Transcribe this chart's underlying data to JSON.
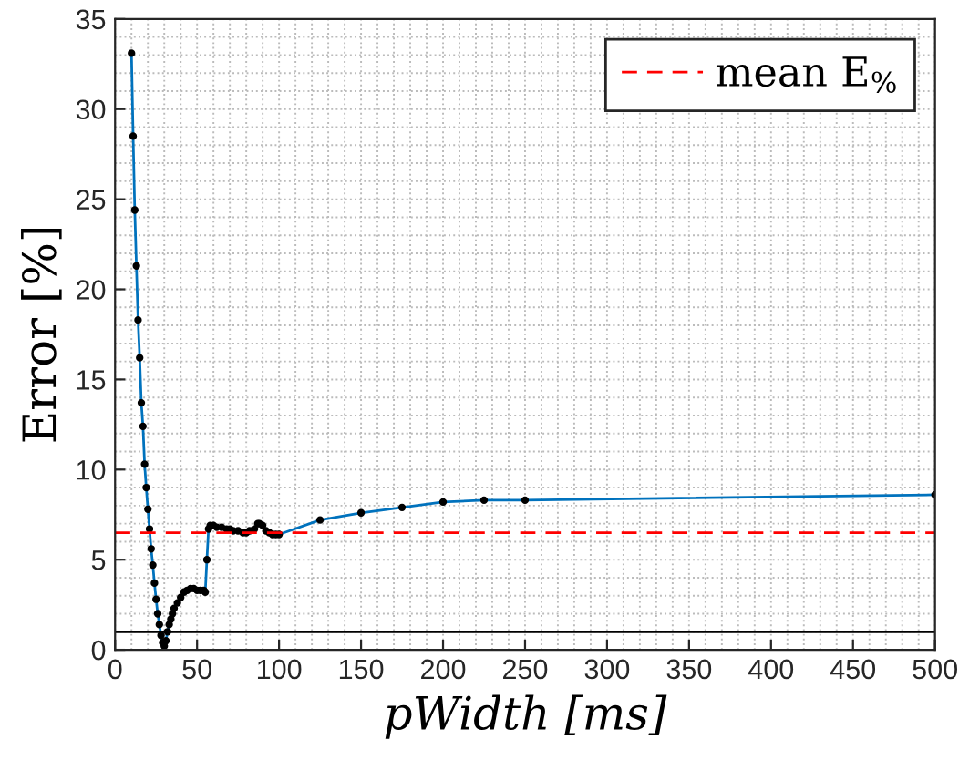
{
  "chart_data": {
    "type": "line",
    "xlabel": "pWidth [ms]",
    "ylabel": "Error [%]",
    "x": [
      10,
      11,
      12,
      13,
      14,
      15,
      16,
      17,
      18,
      19,
      20,
      21,
      22,
      23,
      24,
      25,
      26,
      27,
      28,
      29,
      30,
      31,
      32,
      33,
      34,
      35,
      36,
      38,
      40,
      42,
      44,
      46,
      48,
      50,
      52,
      54,
      55,
      56,
      57,
      58,
      60,
      62,
      65,
      68,
      70,
      72,
      75,
      78,
      80,
      82,
      85,
      87,
      88,
      90,
      92,
      94,
      96,
      98,
      100,
      125,
      150,
      175,
      200,
      225,
      250,
      500
    ],
    "series": [
      {
        "color": "#0072bd",
        "values": [
          33.1,
          28.5,
          24.4,
          21.3,
          18.3,
          16.2,
          13.7,
          12.4,
          10.3,
          9.0,
          7.8,
          6.7,
          5.6,
          4.7,
          3.7,
          2.8,
          2.0,
          1.4,
          0.8,
          0.4,
          0.2,
          0.5,
          1.0,
          1.4,
          1.7,
          2.0,
          2.3,
          2.6,
          2.9,
          3.2,
          3.3,
          3.4,
          3.4,
          3.3,
          3.3,
          3.3,
          3.2,
          5.0,
          6.7,
          6.9,
          6.9,
          6.8,
          6.8,
          6.7,
          6.7,
          6.6,
          6.6,
          6.5,
          6.5,
          6.6,
          6.7,
          7.0,
          7.0,
          6.9,
          6.6,
          6.5,
          6.4,
          6.4,
          6.4,
          7.2,
          7.6,
          7.9,
          8.2,
          8.3,
          8.3,
          8.6
        ]
      }
    ],
    "xlim": [
      0,
      500
    ],
    "ylim": [
      0,
      35
    ],
    "xticks": [
      0,
      50,
      100,
      150,
      200,
      250,
      300,
      350,
      400,
      450,
      500
    ],
    "yticks": [
      0,
      5,
      10,
      15,
      20,
      25,
      30,
      35
    ],
    "marker": "circle",
    "line_style": "solid",
    "grid": true,
    "legend": "top right",
    "ref_lines": [
      {
        "axis": "y",
        "value": 6.5,
        "label": "mean E$_{%}$",
        "color": "#ff0000",
        "line_style": "dashed"
      },
      {
        "axis": "y",
        "value": 1,
        "color": "#000000",
        "line_style": "solid"
      }
    ]
  }
}
